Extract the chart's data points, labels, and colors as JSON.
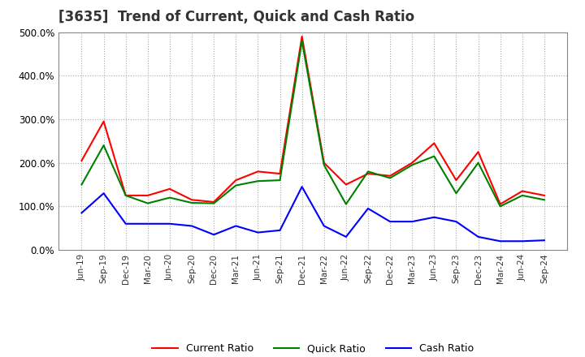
{
  "title": "[3635]  Trend of Current, Quick and Cash Ratio",
  "x_labels": [
    "Jun-19",
    "Sep-19",
    "Dec-19",
    "Mar-20",
    "Jun-20",
    "Sep-20",
    "Dec-20",
    "Mar-21",
    "Jun-21",
    "Sep-21",
    "Dec-21",
    "Mar-22",
    "Jun-22",
    "Sep-22",
    "Dec-22",
    "Mar-23",
    "Jun-23",
    "Sep-23",
    "Dec-23",
    "Mar-24",
    "Jun-24",
    "Sep-24"
  ],
  "current_ratio": [
    205,
    295,
    125,
    125,
    140,
    115,
    110,
    160,
    180,
    175,
    490,
    200,
    150,
    175,
    170,
    200,
    245,
    160,
    225,
    105,
    135,
    125
  ],
  "quick_ratio": [
    150,
    240,
    125,
    107,
    120,
    108,
    107,
    148,
    158,
    160,
    480,
    195,
    105,
    180,
    165,
    195,
    215,
    130,
    200,
    100,
    125,
    115
  ],
  "cash_ratio": [
    85,
    130,
    60,
    60,
    60,
    55,
    35,
    55,
    40,
    45,
    145,
    55,
    30,
    95,
    65,
    65,
    75,
    65,
    30,
    20,
    20,
    22
  ],
  "current_color": "#ff0000",
  "quick_color": "#008000",
  "cash_color": "#0000ff",
  "ylim": [
    0,
    500
  ],
  "yticks": [
    0,
    100,
    200,
    300,
    400,
    500
  ],
  "bg_color": "#ffffff",
  "plot_bg_color": "#ffffff",
  "grid_color": "#aaaaaa",
  "title_fontsize": 12,
  "title_color": "#333333",
  "legend_labels": [
    "Current Ratio",
    "Quick Ratio",
    "Cash Ratio"
  ]
}
